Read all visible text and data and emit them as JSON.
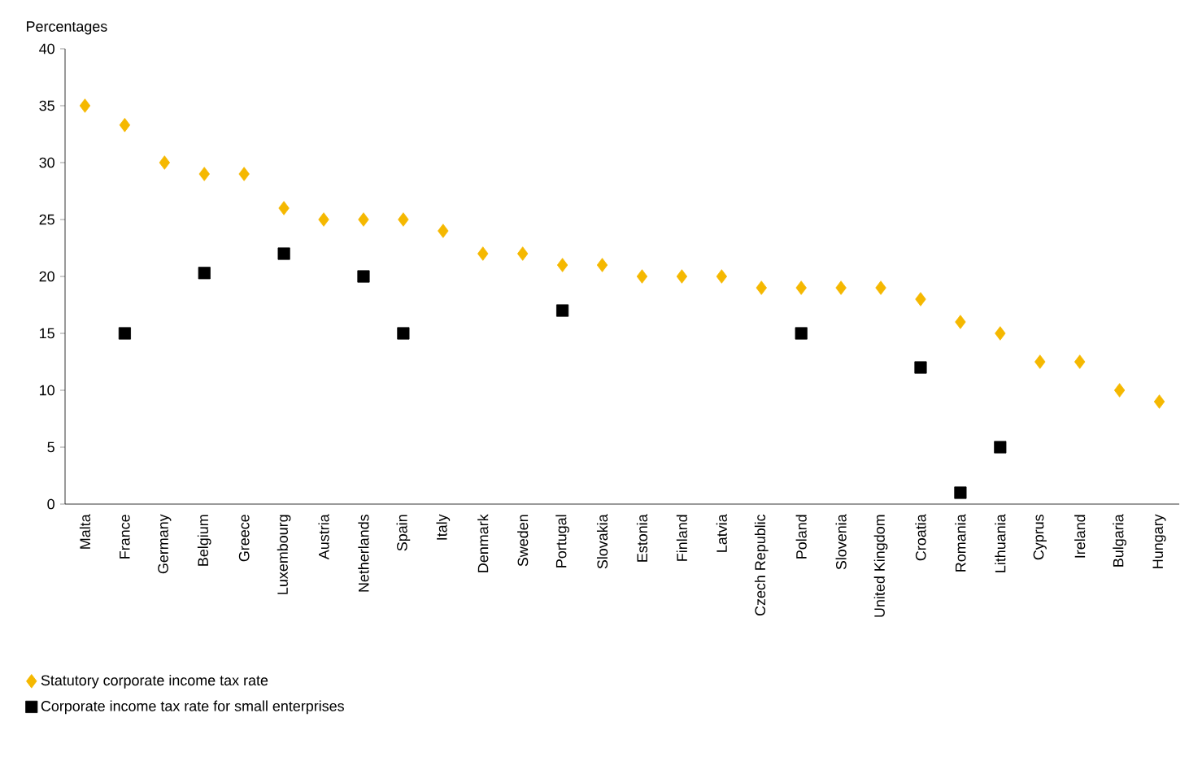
{
  "chart_data": {
    "type": "scatter",
    "ylabel": "Percentages",
    "categories": [
      "Malta",
      "France",
      "Germany",
      "Belgium",
      "Greece",
      "Luxembourg",
      "Austria",
      "Netherlands",
      "Spain",
      "Italy",
      "Denmark",
      "Sweden",
      "Portugal",
      "Slovakia",
      "Estonia",
      "Finland",
      "Latvia",
      "Czech Republic",
      "Poland",
      "Slovenia",
      "United Kingdom",
      "Croatia",
      "Romania",
      "Lithuania",
      "Cyprus",
      "Ireland",
      "Bulgaria",
      "Hungary"
    ],
    "series": [
      {
        "name": "Statutory corporate income tax rate",
        "color": "#f5b800",
        "marker": "diamond",
        "values": [
          35,
          33.3,
          30,
          29,
          29,
          26,
          25,
          25,
          25,
          24,
          22,
          22,
          21,
          21,
          20,
          20,
          20,
          19,
          19,
          19,
          19,
          18,
          16,
          15,
          12.5,
          12.5,
          10,
          9
        ]
      },
      {
        "name": "Corporate income tax rate for small enterprises",
        "color": "#000000",
        "marker": "square",
        "values": [
          null,
          15,
          null,
          20.3,
          null,
          22,
          null,
          20,
          15,
          null,
          null,
          null,
          17,
          null,
          null,
          null,
          null,
          null,
          15,
          null,
          null,
          12,
          1,
          5,
          null,
          null,
          null,
          null
        ]
      }
    ],
    "ylim": [
      0,
      40
    ],
    "yticks": [
      0,
      5,
      10,
      15,
      20,
      25,
      30,
      35,
      40
    ],
    "grid": false,
    "legend": "bottom"
  }
}
